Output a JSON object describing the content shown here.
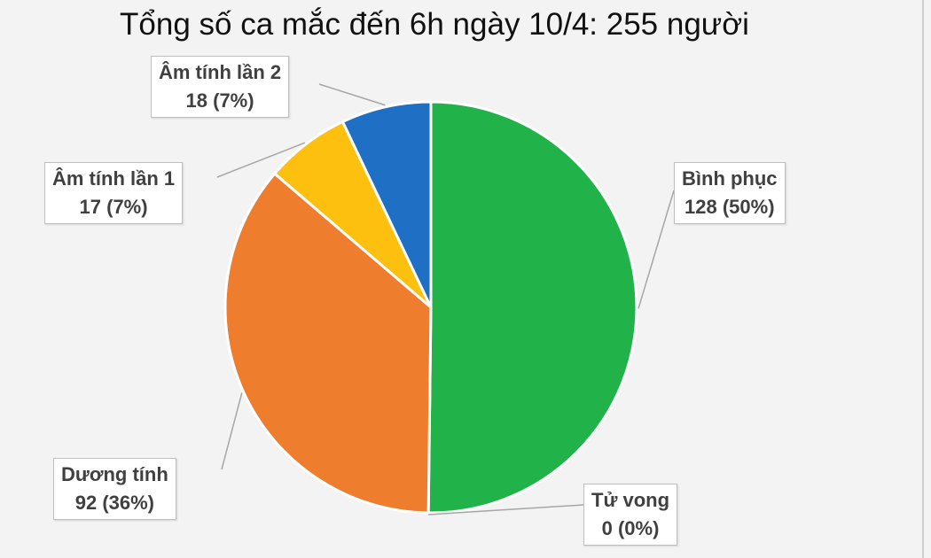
{
  "chart_data": {
    "type": "pie",
    "title": "Tổng số ca mắc đến 6h ngày 10/4: 255 người",
    "slices": [
      {
        "label": "Bình phục",
        "value": 128,
        "value_label": "128 (50%)",
        "color": "#21b24a"
      },
      {
        "label": "Tử vong",
        "value": 0,
        "value_label": "0 (0%)",
        "color": "#7f7f7f"
      },
      {
        "label": "Dương tính",
        "value": 92,
        "value_label": "92 (36%)",
        "color": "#ef7d2e"
      },
      {
        "label": "Âm tính lần 1",
        "value": 17,
        "value_label": "17 (7%)",
        "color": "#fec00f"
      },
      {
        "label": "Âm tính lần 2",
        "value": 18,
        "value_label": "18 (7%)",
        "color": "#1f6fc4"
      }
    ],
    "start_angle_deg": 0,
    "direction": "clockwise",
    "slice_border_color": "#ffffff"
  }
}
